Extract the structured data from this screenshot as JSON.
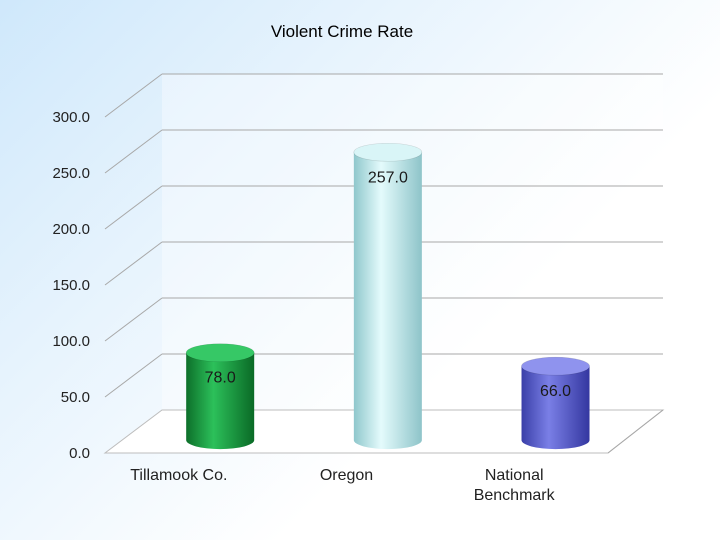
{
  "chart_data": {
    "type": "bar",
    "title": "Violent Crime Rate",
    "categories": [
      [
        "Tillamook Co."
      ],
      [
        "Oregon"
      ],
      [
        "National",
        "Benchmark"
      ]
    ],
    "values": [
      78.0,
      257.0,
      66.0
    ],
    "value_labels": [
      "78.0",
      "257.0",
      "66.0"
    ],
    "ytick_labels": [
      "0.0",
      "50.0",
      "100.0",
      "150.0",
      "200.0",
      "250.0",
      "300.0"
    ],
    "ylim": [
      0,
      300
    ],
    "grid": true,
    "legend": "none",
    "bar_colors": [
      "#1a9a3e",
      "#bfe9ec",
      "#5a5fcf"
    ]
  }
}
